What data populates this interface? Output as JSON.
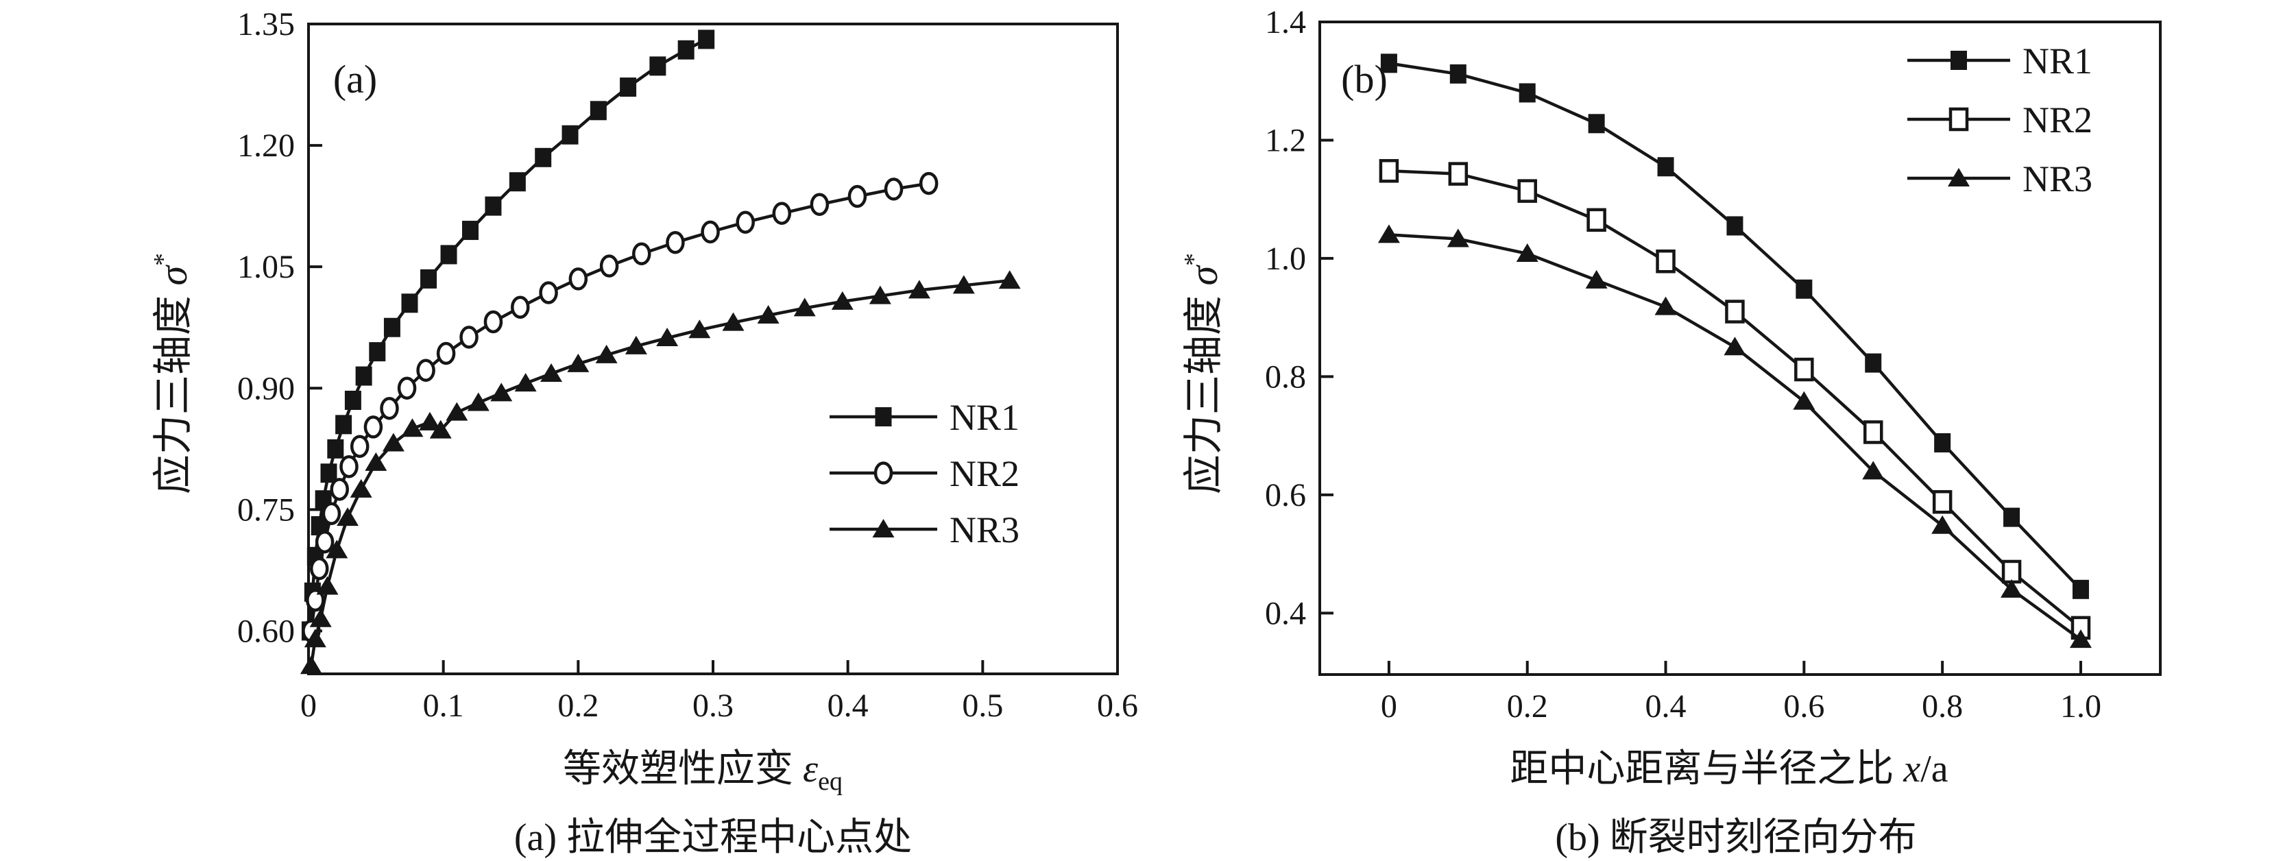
{
  "figure": {
    "background": "#ffffff",
    "ink_color": "#161616"
  },
  "chart_data": [
    {
      "type": "line",
      "panel_label": "(a)",
      "caption": "(a) 拉伸全过程中心点处",
      "xlabel": {
        "cn": "等效塑性应变 ",
        "sym": "ε",
        "sub": "eq"
      },
      "ylabel": {
        "cn": "应力三轴度 ",
        "sym": "σ",
        "sup": "*"
      },
      "xlim": [
        0,
        0.6
      ],
      "ylim": [
        0.547,
        1.35
      ],
      "grid": "off",
      "legend_position": "inside-right-middle",
      "x_ticks": {
        "values": [
          0,
          0.1,
          0.2,
          0.3,
          0.4,
          0.5,
          0.6
        ],
        "labels": [
          "0",
          "0.1",
          "0.2",
          "0.3",
          "0.4",
          "0.5",
          "0.6"
        ]
      },
      "y_ticks": {
        "values": [
          0.6,
          0.75,
          0.9,
          1.05,
          1.2,
          1.35
        ],
        "labels": [
          "0.60",
          "0.75",
          "0.90",
          "1.05",
          "1.20",
          "1.35"
        ]
      },
      "series": [
        {
          "name": "NR1",
          "marker": "square-filled",
          "points": [
            [
              0.001,
              0.6
            ],
            [
              0.003,
              0.648
            ],
            [
              0.005,
              0.692
            ],
            [
              0.008,
              0.73
            ],
            [
              0.011,
              0.762
            ],
            [
              0.015,
              0.795
            ],
            [
              0.02,
              0.825
            ],
            [
              0.026,
              0.855
            ],
            [
              0.033,
              0.885
            ],
            [
              0.041,
              0.915
            ],
            [
              0.051,
              0.945
            ],
            [
              0.062,
              0.975
            ],
            [
              0.075,
              1.005
            ],
            [
              0.089,
              1.035
            ],
            [
              0.104,
              1.065
            ],
            [
              0.12,
              1.095
            ],
            [
              0.137,
              1.125
            ],
            [
              0.155,
              1.155
            ],
            [
              0.174,
              1.185
            ],
            [
              0.194,
              1.213
            ],
            [
              0.215,
              1.243
            ],
            [
              0.237,
              1.272
            ],
            [
              0.259,
              1.298
            ],
            [
              0.28,
              1.318
            ],
            [
              0.295,
              1.331
            ]
          ]
        },
        {
          "name": "NR2",
          "marker": "circle-open",
          "points": [
            [
              0.002,
              0.6
            ],
            [
              0.005,
              0.638
            ],
            [
              0.008,
              0.677
            ],
            [
              0.012,
              0.71
            ],
            [
              0.017,
              0.745
            ],
            [
              0.023,
              0.775
            ],
            [
              0.03,
              0.803
            ],
            [
              0.038,
              0.828
            ],
            [
              0.048,
              0.852
            ],
            [
              0.06,
              0.875
            ],
            [
              0.073,
              0.9
            ],
            [
              0.087,
              0.922
            ],
            [
              0.102,
              0.943
            ],
            [
              0.119,
              0.963
            ],
            [
              0.137,
              0.982
            ],
            [
              0.157,
              1.0
            ],
            [
              0.178,
              1.018
            ],
            [
              0.2,
              1.035
            ],
            [
              0.223,
              1.051
            ],
            [
              0.247,
              1.066
            ],
            [
              0.272,
              1.08
            ],
            [
              0.298,
              1.093
            ],
            [
              0.324,
              1.105
            ],
            [
              0.351,
              1.116
            ],
            [
              0.379,
              1.127
            ],
            [
              0.407,
              1.137
            ],
            [
              0.434,
              1.146
            ],
            [
              0.46,
              1.153
            ]
          ]
        },
        {
          "name": "NR3",
          "marker": "triangle-filled",
          "points": [
            [
              0.002,
              0.557
            ],
            [
              0.005,
              0.59
            ],
            [
              0.009,
              0.615
            ],
            [
              0.014,
              0.655
            ],
            [
              0.021,
              0.7
            ],
            [
              0.029,
              0.74
            ],
            [
              0.039,
              0.775
            ],
            [
              0.05,
              0.808
            ],
            [
              0.063,
              0.832
            ],
            [
              0.077,
              0.85
            ],
            [
              0.09,
              0.858
            ],
            [
              0.098,
              0.848
            ],
            [
              0.11,
              0.87
            ],
            [
              0.126,
              0.882
            ],
            [
              0.143,
              0.894
            ],
            [
              0.161,
              0.906
            ],
            [
              0.18,
              0.918
            ],
            [
              0.2,
              0.93
            ],
            [
              0.221,
              0.941
            ],
            [
              0.243,
              0.952
            ],
            [
              0.266,
              0.962
            ],
            [
              0.29,
              0.972
            ],
            [
              0.315,
              0.981
            ],
            [
              0.341,
              0.99
            ],
            [
              0.368,
              0.999
            ],
            [
              0.396,
              1.007
            ],
            [
              0.424,
              1.014
            ],
            [
              0.453,
              1.021
            ],
            [
              0.486,
              1.027
            ],
            [
              0.52,
              1.033
            ]
          ]
        }
      ]
    },
    {
      "type": "line",
      "panel_label": "(b)",
      "caption": "(b) 断裂时刻径向分布",
      "xlabel": {
        "cn": "距中心距离与半径之比 ",
        "sym": "x",
        "suffix": "/a"
      },
      "ylabel": {
        "cn": "应力三轴度 ",
        "sym": "σ",
        "sup": "*"
      },
      "xlim": [
        -0.1,
        1.115
      ],
      "ylim": [
        0.296,
        1.4
      ],
      "grid": "off",
      "legend_position": "inside-top-right",
      "x_ticks": {
        "values": [
          0,
          0.2,
          0.4,
          0.6,
          0.8,
          1.0
        ],
        "labels": [
          "0",
          "0.2",
          "0.4",
          "0.6",
          "0.8",
          "1.0"
        ]
      },
      "y_ticks": {
        "values": [
          0.4,
          0.6,
          0.8,
          1.0,
          1.2,
          1.4
        ],
        "labels": [
          "0.4",
          "0.6",
          "0.8",
          "1.0",
          "1.2",
          "1.4"
        ]
      },
      "series": [
        {
          "name": "NR1",
          "marker": "square-filled",
          "points": [
            [
              0.0,
              1.33
            ],
            [
              0.1,
              1.312
            ],
            [
              0.2,
              1.28
            ],
            [
              0.3,
              1.228
            ],
            [
              0.4,
              1.155
            ],
            [
              0.5,
              1.055
            ],
            [
              0.6,
              0.948
            ],
            [
              0.7,
              0.823
            ],
            [
              0.8,
              0.688
            ],
            [
              0.9,
              0.562
            ],
            [
              1.0,
              0.44
            ]
          ]
        },
        {
          "name": "NR2",
          "marker": "square-open",
          "points": [
            [
              0.0,
              1.148
            ],
            [
              0.1,
              1.143
            ],
            [
              0.2,
              1.114
            ],
            [
              0.3,
              1.065
            ],
            [
              0.4,
              0.995
            ],
            [
              0.5,
              0.91
            ],
            [
              0.6,
              0.812
            ],
            [
              0.7,
              0.706
            ],
            [
              0.8,
              0.588
            ],
            [
              0.9,
              0.47
            ],
            [
              1.0,
              0.375
            ]
          ]
        },
        {
          "name": "NR3",
          "marker": "triangle-filled",
          "points": [
            [
              0.0,
              1.04
            ],
            [
              0.1,
              1.033
            ],
            [
              0.2,
              1.008
            ],
            [
              0.3,
              0.963
            ],
            [
              0.4,
              0.918
            ],
            [
              0.5,
              0.85
            ],
            [
              0.6,
              0.758
            ],
            [
              0.7,
              0.64
            ],
            [
              0.8,
              0.548
            ],
            [
              0.9,
              0.44
            ],
            [
              1.0,
              0.355
            ]
          ]
        }
      ]
    }
  ]
}
